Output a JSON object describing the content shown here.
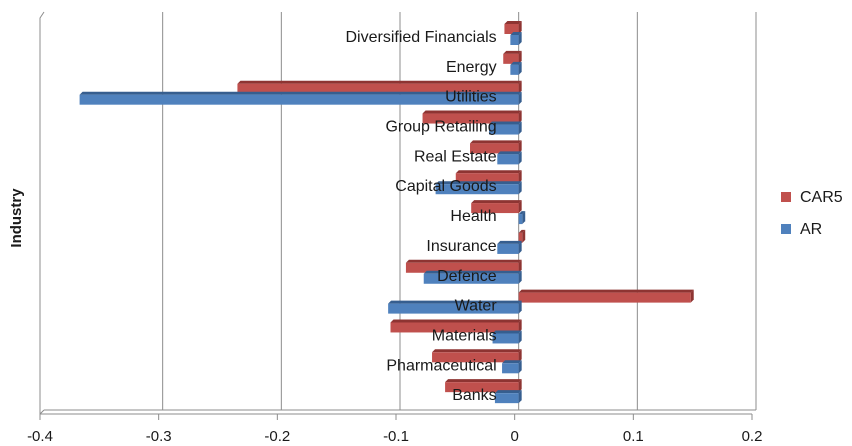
{
  "chart_data": {
    "type": "bar",
    "orientation": "horizontal",
    "ylabel": "Industry",
    "xlabel": "",
    "categories": [
      "Diversified Financials",
      "Energy",
      "Utilities",
      "Group Retailing",
      "Real Estate",
      "Capital Goods",
      "Health",
      "Insurance",
      "Defence",
      "Water",
      "Materials",
      "Pharmaceutical",
      "Banks"
    ],
    "series": [
      {
        "name": "CAR5",
        "color": "#c0504d",
        "values": [
          -0.012,
          -0.013,
          -0.237,
          -0.081,
          -0.041,
          -0.053,
          -0.04,
          0.003,
          -0.095,
          0.145,
          -0.108,
          -0.073,
          -0.062
        ]
      },
      {
        "name": "AR",
        "color": "#4f81bd",
        "values": [
          -0.007,
          -0.007,
          -0.37,
          -0.025,
          -0.018,
          -0.07,
          0.003,
          -0.018,
          -0.08,
          -0.11,
          -0.022,
          -0.014,
          -0.02
        ]
      }
    ],
    "xlim": [
      -0.4,
      0.2
    ],
    "xticks": [
      "-0.4",
      "-0.3",
      "-0.2",
      "-0.1",
      "0",
      "0.1",
      "0.2"
    ],
    "grid": true,
    "legend_position": "right"
  }
}
